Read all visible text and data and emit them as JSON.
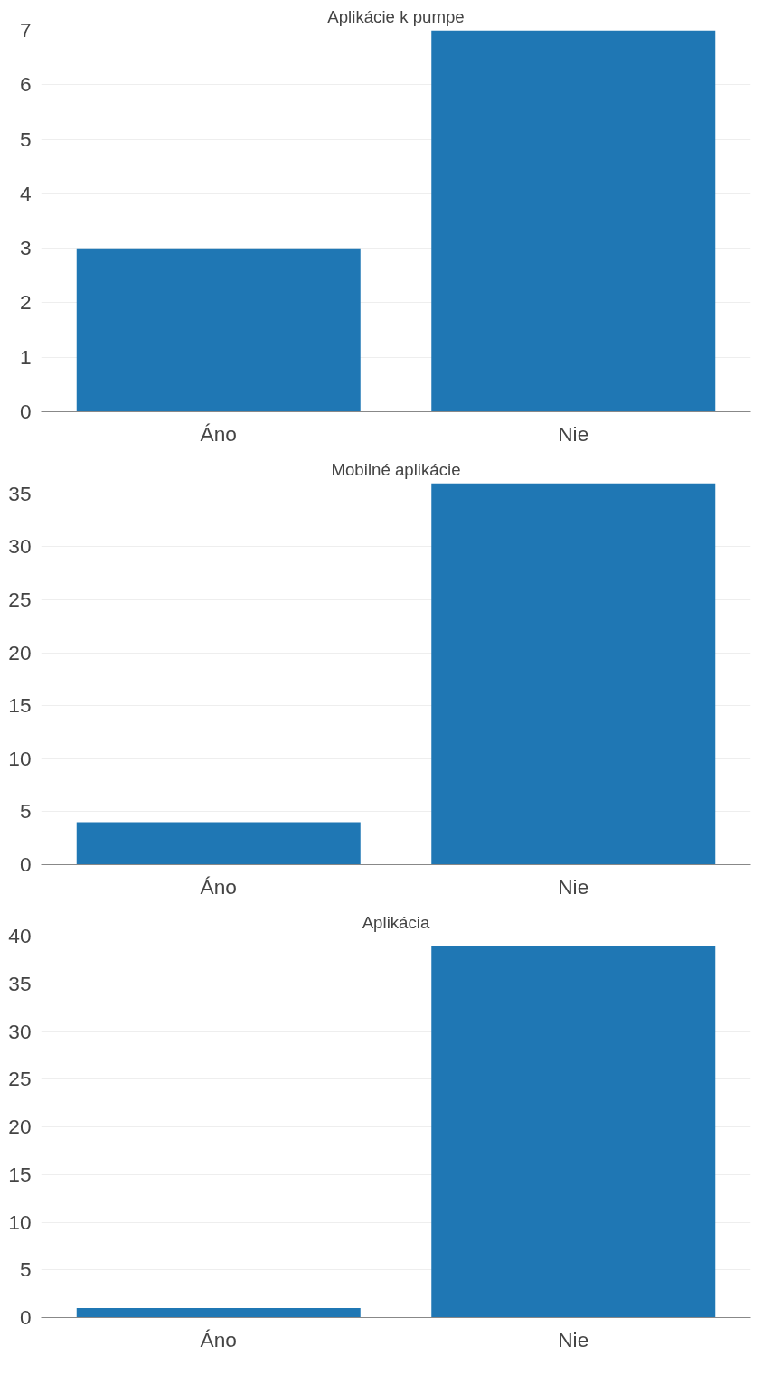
{
  "chart_data": [
    {
      "type": "bar",
      "title": "Aplikácie k pumpe",
      "categories": [
        "Áno",
        "Nie"
      ],
      "values": [
        3,
        7
      ],
      "color": "#1f77b4",
      "ylim": [
        0,
        7
      ],
      "yticks": [
        0,
        1,
        2,
        3,
        4,
        5,
        6,
        7
      ],
      "grid": "y"
    },
    {
      "type": "bar",
      "title": "Mobilné aplikácie",
      "categories": [
        "Áno",
        "Nie"
      ],
      "values": [
        4,
        36
      ],
      "color": "#1f77b4",
      "ylim": [
        0,
        36
      ],
      "yticks": [
        0,
        5,
        10,
        15,
        20,
        25,
        30,
        35
      ],
      "grid": "y"
    },
    {
      "type": "bar",
      "title": "Aplikácia",
      "categories": [
        "Áno",
        "Nie"
      ],
      "values": [
        1,
        39
      ],
      "color": "#1f77b4",
      "ylim": [
        0,
        40
      ],
      "yticks": [
        0,
        5,
        10,
        15,
        20,
        25,
        30,
        35,
        40
      ],
      "grid": "y"
    }
  ]
}
